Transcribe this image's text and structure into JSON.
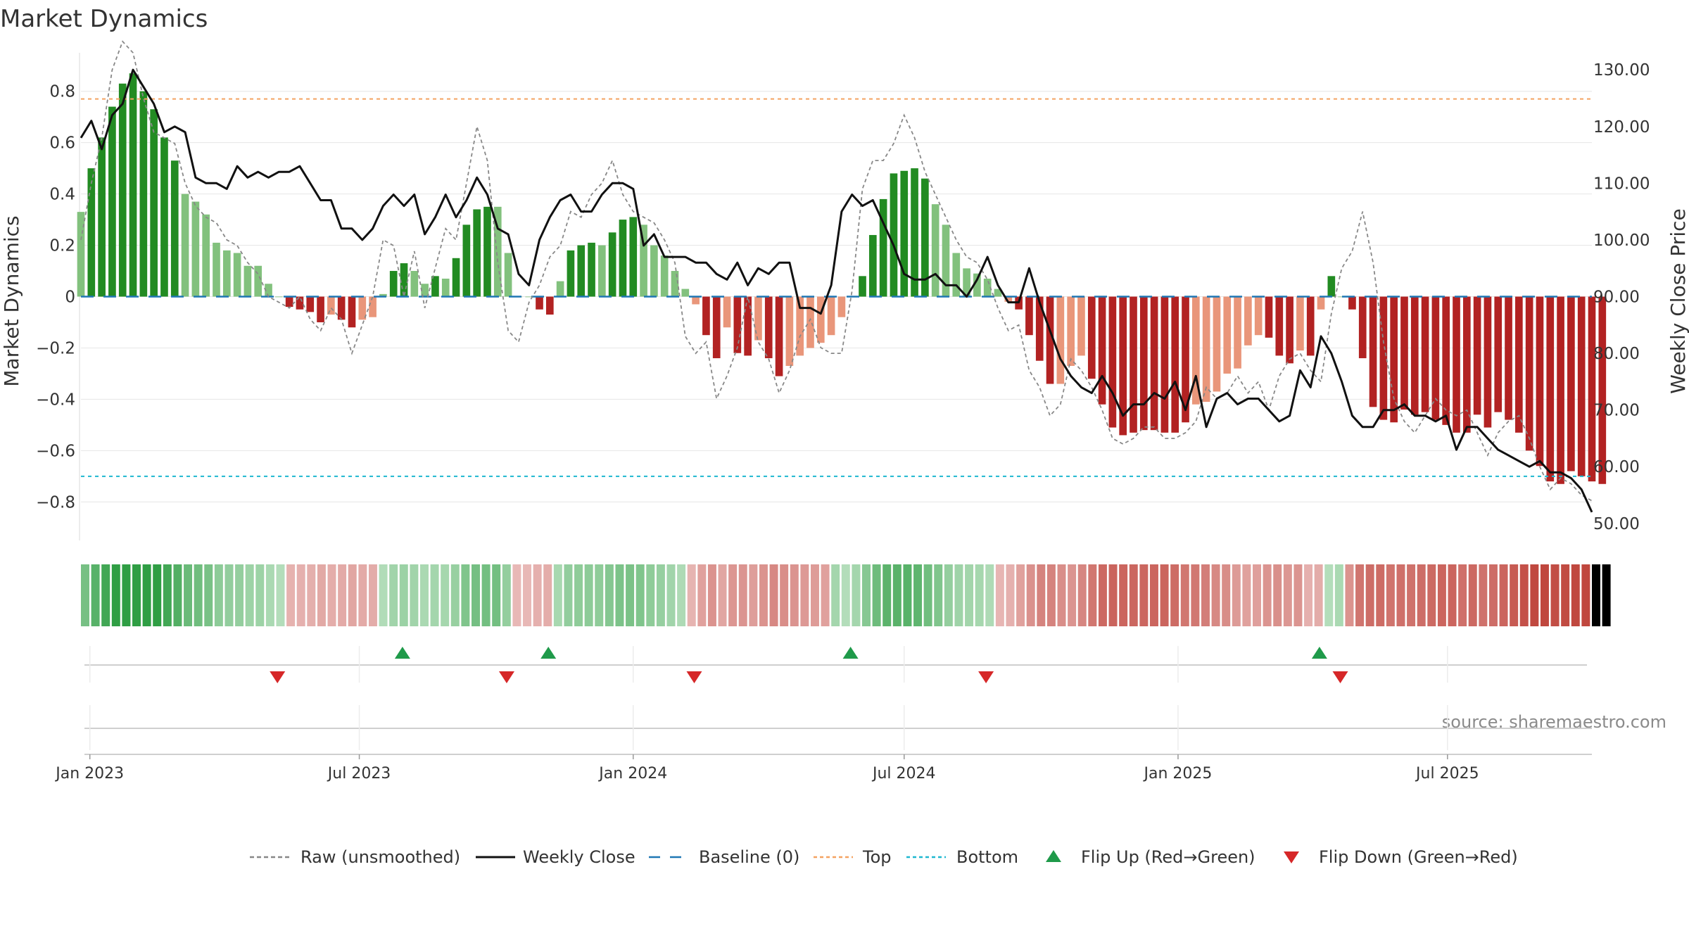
{
  "chart_data": {
    "type": "bar",
    "title": "Market Dynamics",
    "ylabel_left": "Market Dynamics",
    "ylabel_right": "Weekly Close Price",
    "source": "source: sharemaestro.com",
    "ylim_left": [
      -0.95,
      0.95
    ],
    "ylim_right": [
      47,
      133
    ],
    "left_ticks": [
      {
        "value": 0.8,
        "label": "0.8"
      },
      {
        "value": 0.6,
        "label": "0.6"
      },
      {
        "value": 0.4,
        "label": "0.4"
      },
      {
        "value": 0.2,
        "label": "0.2"
      },
      {
        "value": 0,
        "label": "0"
      },
      {
        "value": -0.2,
        "label": "−0.2"
      },
      {
        "value": -0.4,
        "label": "−0.4"
      },
      {
        "value": -0.6,
        "label": "−0.6"
      },
      {
        "value": -0.8,
        "label": "−0.8"
      }
    ],
    "right_ticks": [
      {
        "value": 130,
        "label": "130.00"
      },
      {
        "value": 120,
        "label": "120.00"
      },
      {
        "value": 110,
        "label": "110.00"
      },
      {
        "value": 100,
        "label": "100.00"
      },
      {
        "value": 90,
        "label": "90.00"
      },
      {
        "value": 80,
        "label": "80.00"
      },
      {
        "value": 70,
        "label": "70.00"
      },
      {
        "value": 60,
        "label": "60.00"
      },
      {
        "value": 50,
        "label": "50.00"
      }
    ],
    "x_start": "2022-12-26",
    "x_end": "2025-10-06",
    "x_ticks": [
      {
        "date": "2023-01-01",
        "label": "Jan 2023"
      },
      {
        "date": "2023-07-01",
        "label": "Jul 2023"
      },
      {
        "date": "2024-01-01",
        "label": "Jan 2024"
      },
      {
        "date": "2024-07-01",
        "label": "Jul 2024"
      },
      {
        "date": "2025-01-01",
        "label": "Jan 2025"
      },
      {
        "date": "2025-07-01",
        "label": "Jul 2025"
      }
    ],
    "top_line": 0.77,
    "bottom_line": -0.7,
    "baseline": 0,
    "bars": [
      0.33,
      0.5,
      0.62,
      0.74,
      0.83,
      0.87,
      0.8,
      0.73,
      0.62,
      0.53,
      0.4,
      0.37,
      0.32,
      0.21,
      0.18,
      0.17,
      0.12,
      0.12,
      0.05,
      0.0,
      -0.04,
      -0.05,
      -0.06,
      -0.1,
      -0.07,
      -0.09,
      -0.12,
      -0.09,
      -0.08,
      0.01,
      0.1,
      0.13,
      0.1,
      0.05,
      0.08,
      0.07,
      0.15,
      0.28,
      0.34,
      0.35,
      0.35,
      0.17,
      0.0,
      0.0,
      -0.05,
      -0.07,
      0.06,
      0.18,
      0.2,
      0.21,
      0.2,
      0.25,
      0.3,
      0.31,
      0.28,
      0.2,
      0.16,
      0.1,
      0.03,
      -0.03,
      -0.15,
      -0.24,
      -0.12,
      -0.22,
      -0.23,
      -0.17,
      -0.24,
      -0.31,
      -0.27,
      -0.23,
      -0.2,
      -0.18,
      -0.15,
      -0.08,
      0.0,
      0.08,
      0.24,
      0.38,
      0.48,
      0.49,
      0.5,
      0.46,
      0.36,
      0.28,
      0.17,
      0.11,
      0.09,
      0.07,
      0.03,
      -0.02,
      -0.05,
      -0.15,
      -0.25,
      -0.34,
      -0.34,
      -0.27,
      -0.23,
      -0.32,
      -0.42,
      -0.51,
      -0.54,
      -0.53,
      -0.52,
      -0.52,
      -0.53,
      -0.53,
      -0.49,
      -0.42,
      -0.41,
      -0.37,
      -0.3,
      -0.28,
      -0.19,
      -0.15,
      -0.16,
      -0.23,
      -0.26,
      -0.21,
      -0.23,
      -0.05,
      0.08,
      0.0,
      -0.05,
      -0.24,
      -0.43,
      -0.48,
      -0.49,
      -0.44,
      -0.46,
      -0.45,
      -0.48,
      -0.5,
      -0.53,
      -0.53,
      -0.46,
      -0.51,
      -0.45,
      -0.48,
      -0.53,
      -0.6,
      -0.66,
      -0.72,
      -0.73,
      -0.68,
      -0.7,
      -0.72,
      -0.73
    ],
    "close": [
      118,
      121,
      116,
      122,
      124,
      130,
      127,
      124,
      119,
      120,
      119,
      111,
      110,
      110,
      109,
      113,
      111,
      112,
      111,
      112,
      112,
      113,
      110,
      107,
      107,
      102,
      102,
      100,
      102,
      106,
      108,
      106,
      108,
      101,
      104,
      108,
      104,
      107,
      111,
      108,
      102,
      101,
      94,
      92,
      100,
      104,
      107,
      108,
      105,
      105,
      108,
      110,
      110,
      109,
      99,
      101,
      97,
      97,
      97,
      96,
      96,
      94,
      93,
      96,
      92,
      95,
      94,
      96,
      96,
      88,
      88,
      87,
      92,
      105,
      108,
      106,
      107,
      103,
      99,
      94,
      93,
      93,
      94,
      92,
      92,
      90,
      93,
      97,
      92,
      89,
      89,
      95,
      89,
      84,
      79,
      76,
      74,
      73,
      76,
      73,
      69,
      71,
      71,
      73,
      72,
      75,
      70,
      76,
      67,
      72,
      73,
      71,
      72,
      72,
      70,
      68,
      69,
      77,
      74,
      83,
      80,
      75,
      69,
      67,
      67,
      70,
      70,
      71,
      69,
      69,
      68,
      69,
      63,
      67,
      67,
      65,
      63,
      62,
      61,
      60,
      61,
      59,
      59,
      58,
      56,
      52
    ],
    "raw": [
      100,
      110,
      118,
      130,
      135,
      133,
      125,
      119,
      118,
      117,
      110,
      106,
      104,
      103,
      100,
      99,
      96,
      94,
      90,
      89,
      88,
      90,
      86,
      84,
      88,
      86,
      80,
      85,
      90,
      100,
      99,
      90,
      98,
      88,
      95,
      102,
      100,
      110,
      120,
      114,
      96,
      84,
      82,
      89,
      92,
      97,
      99,
      105,
      104,
      108,
      110,
      114,
      108,
      105,
      104,
      103,
      100,
      96,
      83,
      80,
      82,
      72,
      76,
      81,
      90,
      82,
      79,
      73,
      77,
      83,
      86,
      81,
      80,
      80,
      91,
      109,
      114,
      114,
      117,
      122,
      118,
      112,
      108,
      104,
      100,
      97,
      96,
      93,
      88,
      84,
      85,
      77,
      74,
      69,
      71,
      79,
      77,
      74,
      70,
      65,
      64,
      65,
      67,
      67,
      65,
      65,
      66,
      68,
      74,
      72,
      73,
      76,
      73,
      75,
      70,
      76,
      79,
      80,
      77,
      75,
      87,
      95,
      98,
      105,
      96,
      82,
      72,
      68,
      66,
      69,
      72,
      70,
      69,
      70,
      66,
      62,
      66,
      68,
      69,
      65,
      60,
      56,
      58,
      57,
      55,
      54
    ],
    "state": [
      "G",
      "G",
      "G",
      "G",
      "G",
      "G",
      "G",
      "G",
      "G",
      "G",
      "G",
      "G",
      "G",
      "G",
      "G",
      "G",
      "G",
      "G",
      "G",
      "G",
      "R",
      "R",
      "R",
      "R",
      "R",
      "R",
      "R",
      "R",
      "R",
      "G",
      "G",
      "G",
      "G",
      "G",
      "G",
      "G",
      "G",
      "G",
      "G",
      "G",
      "G",
      "G",
      "R",
      "R",
      "R",
      "R",
      "G",
      "G",
      "G",
      "G",
      "G",
      "G",
      "G",
      "G",
      "G",
      "G",
      "G",
      "G",
      "G",
      "R",
      "R",
      "R",
      "R",
      "R",
      "R",
      "R",
      "R",
      "R",
      "R",
      "R",
      "R",
      "R",
      "R",
      "G",
      "G",
      "G",
      "G",
      "G",
      "G",
      "G",
      "G",
      "G",
      "G",
      "G",
      "G",
      "G",
      "G",
      "G",
      "G",
      "R",
      "R",
      "R",
      "R",
      "R",
      "R",
      "R",
      "R",
      "R",
      "R",
      "R",
      "R",
      "R",
      "R",
      "R",
      "R",
      "R",
      "R",
      "R",
      "R",
      "R",
      "R",
      "R",
      "R",
      "R",
      "R",
      "R",
      "R",
      "R",
      "R",
      "R",
      "R",
      "G",
      "G",
      "R",
      "R",
      "R",
      "R",
      "R",
      "R",
      "R",
      "R",
      "R",
      "R",
      "R",
      "R",
      "R",
      "R",
      "R",
      "R",
      "R",
      "R",
      "R",
      "R",
      "R",
      "R",
      "R",
      "R",
      "R",
      "R"
    ],
    "flips_up": [
      "2023-07-30",
      "2023-11-05",
      "2024-05-26",
      "2025-04-06"
    ],
    "flips_down": [
      "2023-05-07",
      "2023-10-08",
      "2024-02-11",
      "2024-08-25",
      "2025-04-20"
    ],
    "legend": [
      {
        "label": "Raw (unsmoothed)",
        "kind": "dash-line",
        "color": "#888888"
      },
      {
        "label": "Weekly Close",
        "kind": "line",
        "color": "#111111"
      },
      {
        "label": "Baseline (0)",
        "kind": "dash-line-long",
        "color": "#1f77b4"
      },
      {
        "label": "Top",
        "kind": "dot-line",
        "color": "#f4a261"
      },
      {
        "label": "Bottom",
        "kind": "dot-line",
        "color": "#1fb8d0"
      },
      {
        "label": "Flip Up (Red→Green)",
        "kind": "tri-up",
        "color": "#1f9a4a"
      },
      {
        "label": "Flip Down (Green→Red)",
        "kind": "tri-down",
        "color": "#d62728"
      }
    ],
    "colors": {
      "strong_green": "#228b22",
      "light_green": "#82c17d",
      "strong_red": "#b22222",
      "light_red": "#e9967a",
      "close_line": "#111111",
      "raw_line": "#888888",
      "top_line": "#f4a261",
      "bottom_line": "#1fb8d0",
      "baseline": "#1f77b4",
      "flip_up": "#1f9a4a",
      "flip_down": "#d62728"
    }
  }
}
